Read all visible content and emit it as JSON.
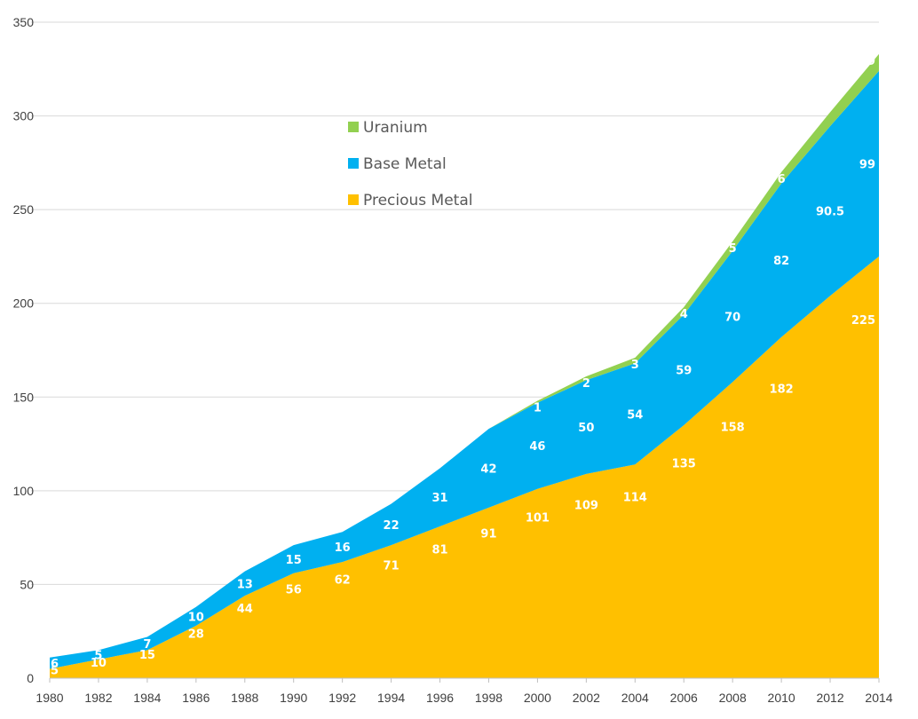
{
  "chart_data": {
    "type": "area",
    "stacked": true,
    "x": [
      1980,
      1982,
      1984,
      1986,
      1988,
      1990,
      1992,
      1994,
      1996,
      1998,
      2000,
      2002,
      2004,
      2006,
      2008,
      2010,
      2012,
      2014
    ],
    "x_ticks": [
      "1980",
      "1982",
      "1984",
      "1986",
      "1988",
      "1990",
      "1992",
      "1994",
      "1996",
      "1998",
      "2000",
      "2002",
      "2004",
      "2006",
      "2008",
      "2010",
      "2012",
      "2014"
    ],
    "series": [
      {
        "name": "Precious Metal",
        "color": "#FFC000",
        "values": [
          5,
          10,
          15,
          28,
          44,
          56,
          62,
          71,
          81,
          91,
          101,
          109,
          114,
          135,
          158,
          182,
          204,
          225
        ],
        "labels": [
          "5",
          "10",
          "15",
          "28",
          "44",
          "56",
          "62",
          "71",
          "81",
          "91",
          "101",
          "109",
          "114",
          "135",
          "158",
          "182",
          null,
          "225"
        ]
      },
      {
        "name": "Base Metal",
        "color": "#00B0F0",
        "values": [
          6,
          5,
          7,
          10,
          13,
          15,
          16,
          22,
          31,
          42,
          46,
          50,
          54,
          59,
          70,
          82,
          90.5,
          99
        ],
        "labels": [
          "6",
          "5",
          "7",
          "10",
          "13",
          "15",
          "16",
          "22",
          "31",
          "42",
          "46",
          "50",
          "54",
          "59",
          "70",
          "82",
          "90.5",
          "99"
        ]
      },
      {
        "name": "Uranium",
        "color": "#92D050",
        "values": [
          0,
          0,
          0,
          0,
          0,
          0,
          0,
          0,
          0,
          0,
          1,
          2,
          3,
          4,
          5,
          6,
          7.5,
          9
        ],
        "labels": [
          null,
          null,
          null,
          null,
          null,
          null,
          null,
          null,
          null,
          null,
          "1",
          "2",
          "3",
          "4",
          "5",
          "6",
          null,
          "9"
        ]
      }
    ],
    "legend_order": [
      "Uranium",
      "Base Metal",
      "Precious Metal"
    ],
    "legend_position": "top-center",
    "y_ticks": [
      0,
      50,
      100,
      150,
      200,
      250,
      300,
      350
    ],
    "ylim": [
      0,
      350
    ],
    "grid": true,
    "title": "",
    "xlabel": "",
    "ylabel": ""
  }
}
